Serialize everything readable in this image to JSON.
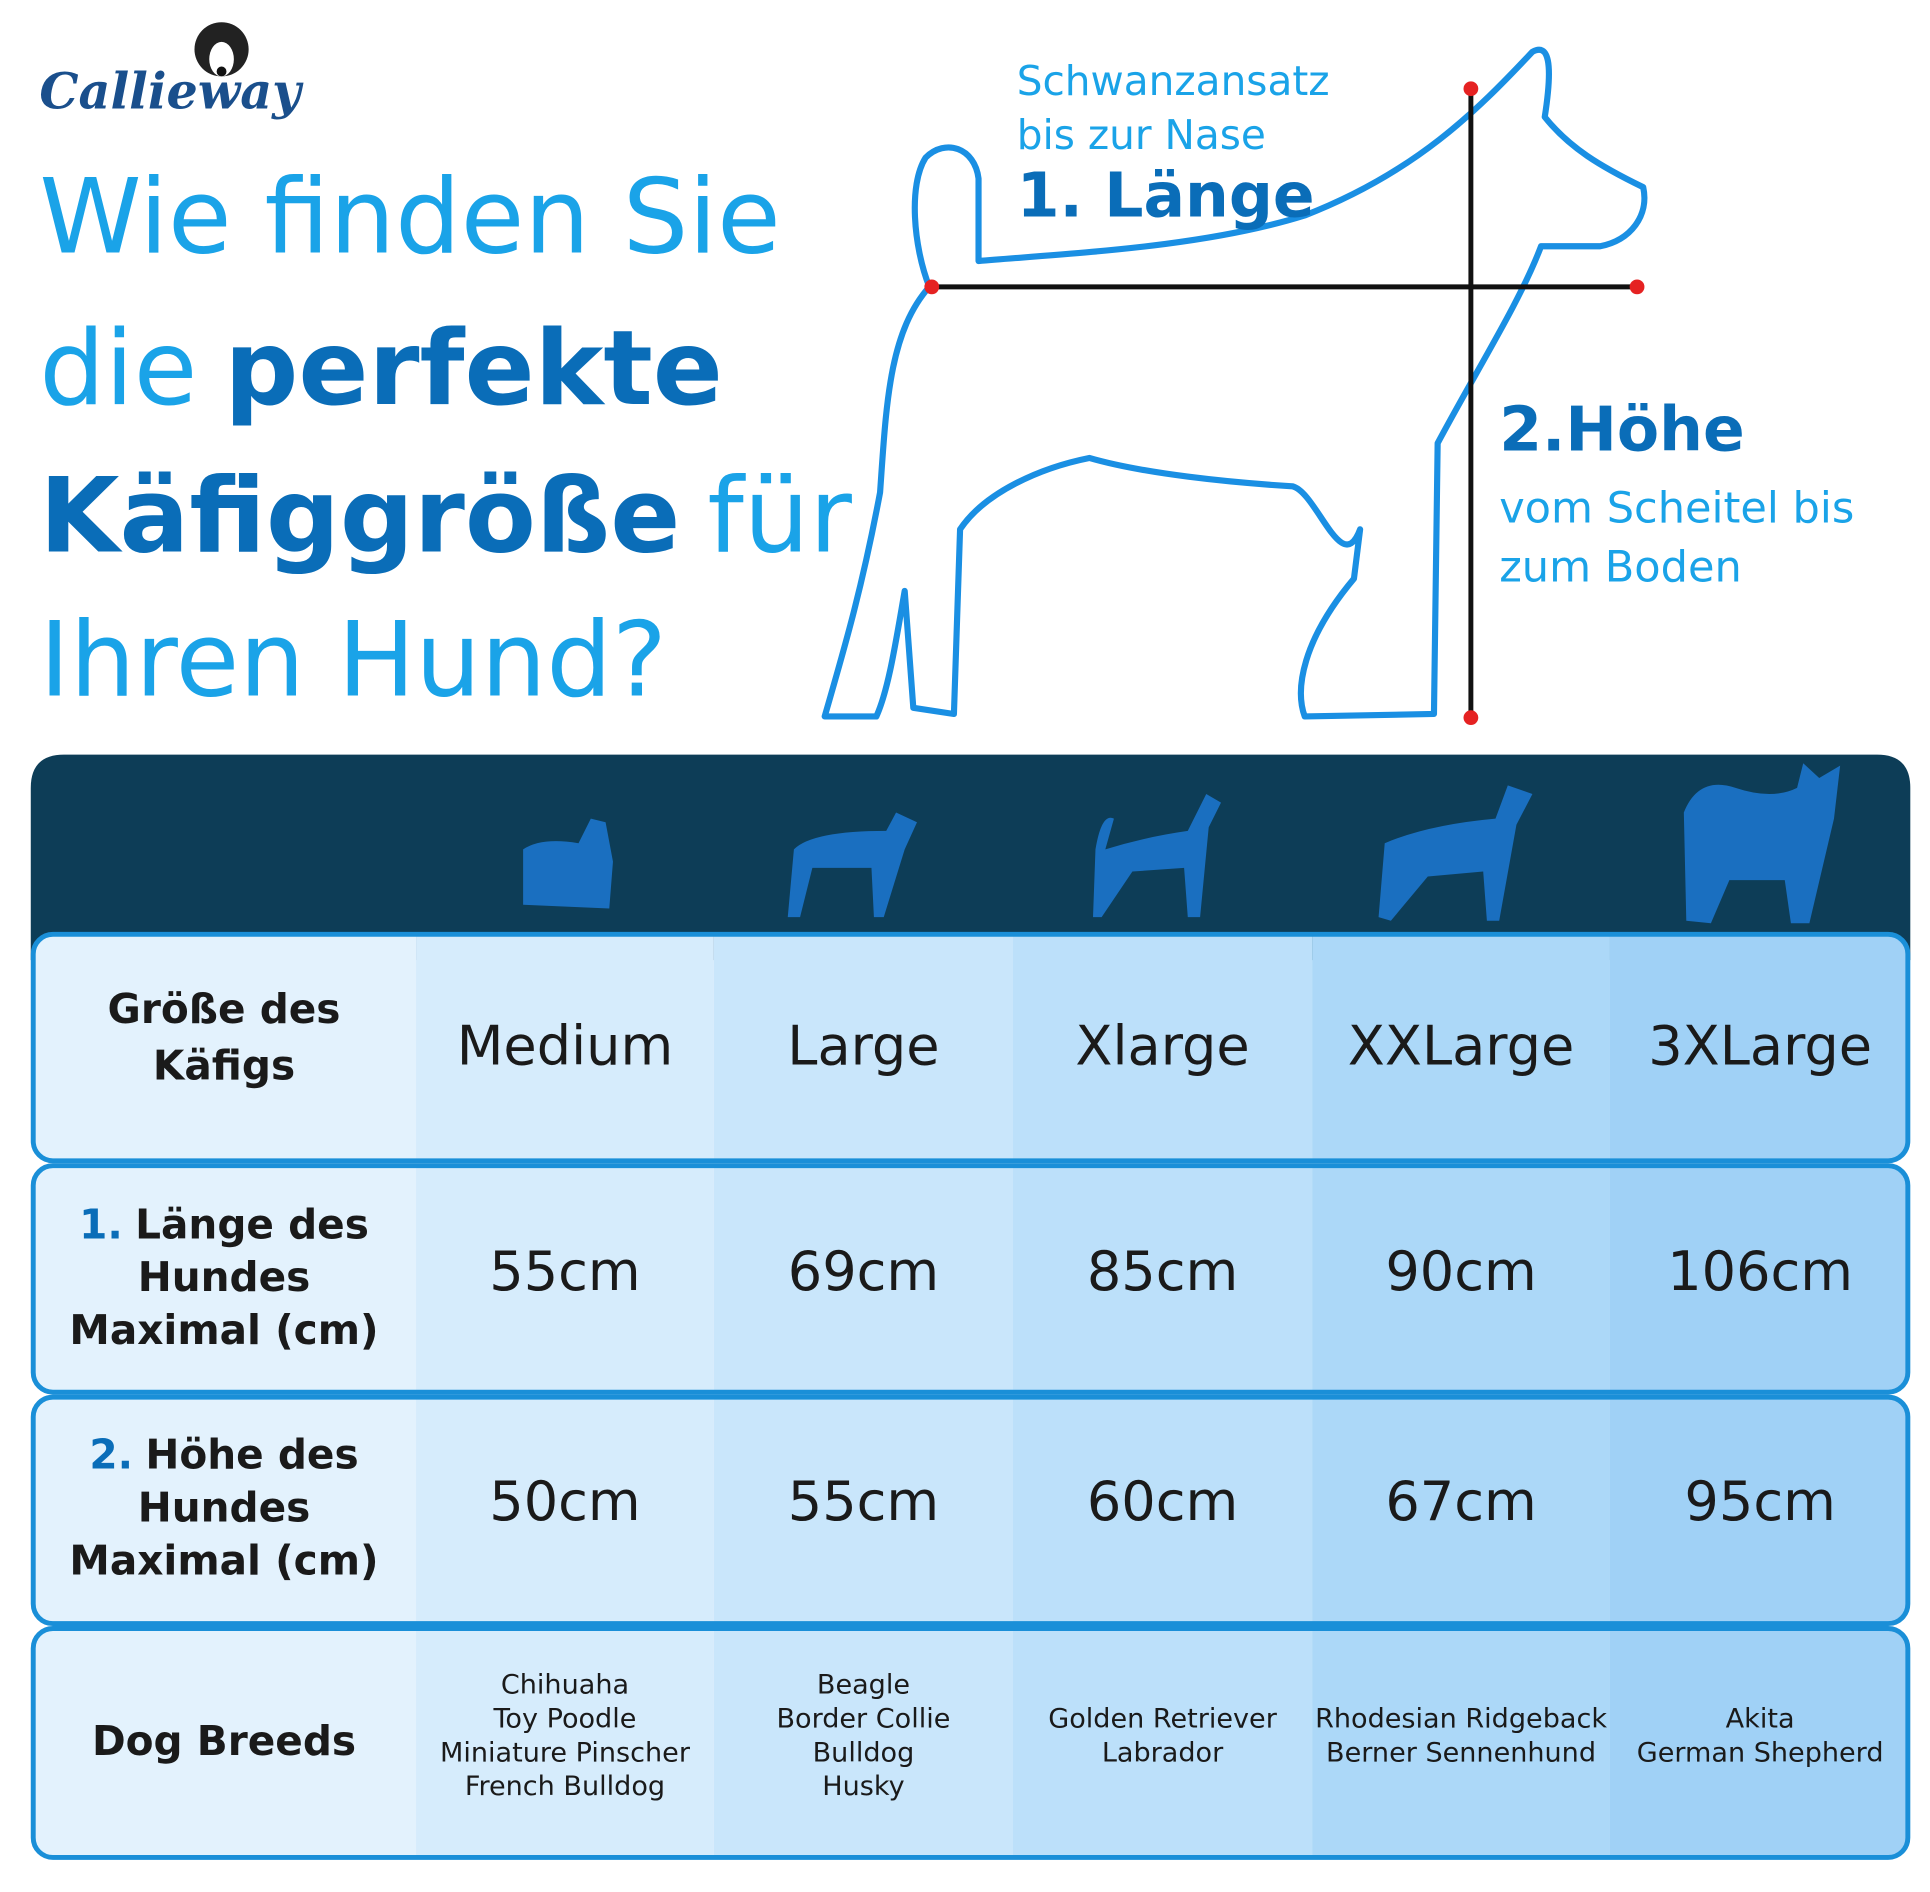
{
  "logo": "Callieway",
  "headline": {
    "lines": [
      [
        {
          "text": "Wie finden Sie",
          "style": "light"
        }
      ],
      [
        {
          "text": "die",
          "style": "light"
        },
        {
          "text": "perfekte",
          "style": "bold"
        }
      ],
      [
        {
          "text": "Käfiggröße",
          "style": "bold"
        },
        {
          "text": "für",
          "style": "light"
        }
      ],
      [
        {
          "text": "Ihren Hund?",
          "style": "light"
        }
      ]
    ]
  },
  "diagram": {
    "length": {
      "caption": [
        "Schwanzansatz",
        "bis zur Nase"
      ],
      "title": "1. Länge"
    },
    "height": {
      "title": "2.Höhe",
      "caption": [
        "vom Scheitel bis",
        "zum Boden"
      ]
    }
  },
  "table": {
    "header": {
      "label": [
        "Größe des",
        "Käfigs"
      ],
      "sizes": [
        "Medium",
        "Large",
        "Xlarge",
        "XXLarge",
        "3XLarge"
      ]
    },
    "rows": [
      {
        "number": "1.",
        "label": [
          "Länge des",
          "Hundes",
          "Maximal (cm)"
        ],
        "values": [
          "55cm",
          "69cm",
          "85cm",
          "90cm",
          "106cm"
        ]
      },
      {
        "number": "2.",
        "label": [
          "Höhe des",
          "Hundes",
          "Maximal (cm)"
        ],
        "values": [
          "50cm",
          "55cm",
          "60cm",
          "67cm",
          "95cm"
        ]
      }
    ],
    "breeds": {
      "label": "Dog Breeds",
      "values": [
        [
          "Chihuaha",
          "Toy Poodle",
          "Miniature Pinscher",
          "French Bulldog"
        ],
        [
          "Beagle",
          "Border Collie",
          "Bulldog",
          "Husky"
        ],
        [
          "Golden Retriever",
          "Labrador"
        ],
        [
          "Rhodesian Ridgeback",
          "Berner Sennenhund"
        ],
        [
          "Akita",
          "German Shepherd"
        ]
      ]
    }
  }
}
